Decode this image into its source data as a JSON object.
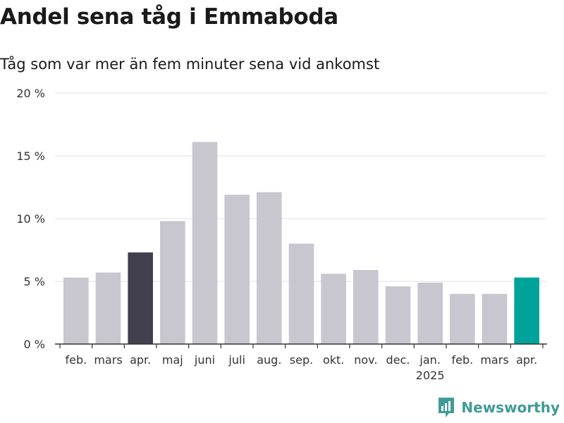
{
  "title": "Andel sena tåg i Emmaboda",
  "subtitle": "Tåg som var mer än fem minuter sena vid ankomst",
  "logo": {
    "text": "Newsworthy",
    "icon": "newsworthy-logo-icon",
    "color": "#3f9b96"
  },
  "chart_data": {
    "type": "bar",
    "categories": [
      "feb.",
      "mars",
      "apr.",
      "maj",
      "juni",
      "juli",
      "aug.",
      "sep.",
      "okt.",
      "nov.",
      "dec.",
      "jan.",
      "feb.",
      "mars",
      "apr."
    ],
    "year_labels": [
      {
        "index": 11,
        "label": "2025"
      }
    ],
    "values": [
      5.3,
      5.7,
      7.3,
      9.8,
      16.1,
      11.9,
      12.1,
      8.0,
      5.6,
      5.9,
      4.6,
      4.9,
      4.0,
      4.0,
      5.3
    ],
    "bar_colors": [
      "#c8c7d0",
      "#c8c7d0",
      "#42404f",
      "#c8c7d0",
      "#c8c7d0",
      "#c8c7d0",
      "#c8c7d0",
      "#c8c7d0",
      "#c8c7d0",
      "#c8c7d0",
      "#c8c7d0",
      "#c8c7d0",
      "#c8c7d0",
      "#c8c7d0",
      "#00a39a"
    ],
    "ylim": [
      0,
      20
    ],
    "yticks": [
      0,
      5,
      10,
      15,
      20
    ],
    "ytick_labels": [
      "0 %",
      "5 %",
      "10 %",
      "15 %",
      "20 %"
    ],
    "grid": true,
    "grid_color": "#e0e0e0",
    "axis_color": "#333333"
  }
}
